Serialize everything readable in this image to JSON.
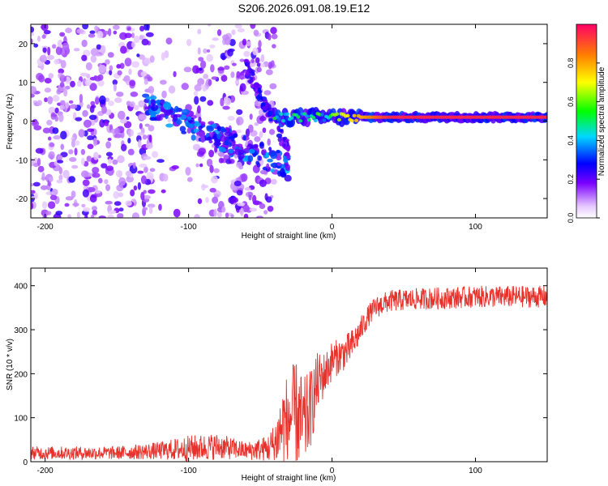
{
  "figure_title": "S206.2026.091.08.19.E12",
  "chart_data": [
    {
      "type": "heatmap",
      "title": "",
      "xlabel": "Height of straight line (km)",
      "ylabel": "Frequency (Hz)",
      "xlim": [
        -210,
        150
      ],
      "ylim": [
        -25,
        25
      ],
      "x_ticks": [
        -200,
        -100,
        0,
        100
      ],
      "x_tick_labels": [
        "-200",
        "-100",
        "0",
        "100"
      ],
      "y_ticks": [
        -20,
        -10,
        0,
        10,
        20
      ],
      "y_tick_labels": [
        "-20",
        "-10",
        "0",
        "10",
        "20"
      ],
      "colorbar": {
        "label": "Normalized spectral amplitude",
        "range": [
          0,
          1
        ],
        "ticks": [
          0.0,
          0.2,
          0.4,
          0.6,
          0.8
        ],
        "tick_labels": [
          "0.0",
          "0.2",
          "0.4",
          "0.6",
          "0.8"
        ],
        "colormap": "rainbow (white-violet-blue-cyan-green-yellow-orange-red)"
      },
      "features": {
        "noise_region_km": [
          -210,
          -40
        ],
        "chirp_region_km": [
          -130,
          -30
        ],
        "chirp_freq_hz": [
          4,
          -12
        ],
        "tone_region_km": [
          -40,
          150
        ],
        "tone_freq_hz": 1
      }
    },
    {
      "type": "line",
      "title": "",
      "xlabel": "Height of straight line (km)",
      "ylabel": "SNR (10 * v/v)",
      "xlim": [
        -210,
        150
      ],
      "ylim": [
        0,
        440
      ],
      "x_ticks": [
        -200,
        -100,
        0,
        100
      ],
      "x_tick_labels": [
        "-200",
        "-100",
        "0",
        "100"
      ],
      "y_ticks": [
        0,
        100,
        200,
        300,
        400
      ],
      "y_tick_labels": [
        "0",
        "100",
        "200",
        "300",
        "400"
      ],
      "series": [
        {
          "name": "SNR",
          "color": "#e8312b",
          "x": [
            -210,
            -150,
            -120,
            -100,
            -80,
            -60,
            -45,
            -40,
            -35,
            -30,
            -25,
            -20,
            -15,
            -10,
            -5,
            0,
            5,
            10,
            15,
            20,
            25,
            30,
            40,
            60,
            80,
            100,
            120,
            150
          ],
          "y": [
            20,
            20,
            25,
            30,
            35,
            25,
            30,
            40,
            80,
            100,
            110,
            80,
            120,
            180,
            200,
            230,
            240,
            250,
            270,
            300,
            330,
            350,
            365,
            370,
            372,
            375,
            375,
            375
          ],
          "noise_amplitude": [
            15,
            15,
            20,
            30,
            30,
            20,
            30,
            50,
            90,
            110,
            120,
            110,
            90,
            70,
            50,
            45,
            40,
            40,
            35,
            30,
            25,
            25,
            25,
            25,
            25,
            25,
            25,
            25
          ]
        }
      ]
    }
  ]
}
